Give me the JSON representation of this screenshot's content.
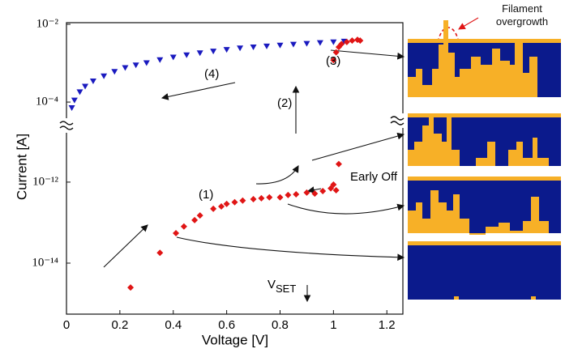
{
  "chart_data": [
    {
      "type": "scatter",
      "log_y": true,
      "xlim": [
        0,
        1.26
      ],
      "ylim": [
        2.5e-05,
        0.01
      ],
      "yticks": [
        {
          "value": 0.01,
          "label": "10⁻²"
        },
        {
          "value": 0.0001,
          "label": "10⁻⁴"
        }
      ],
      "series": [
        {
          "color": "#1a1abf",
          "marker": "triangle-down",
          "x": [
            0.02,
            0.03,
            0.05,
            0.07,
            0.1,
            0.14,
            0.18,
            0.22,
            0.26,
            0.3,
            0.35,
            0.4,
            0.45,
            0.5,
            0.55,
            0.6,
            0.65,
            0.7,
            0.75,
            0.8,
            0.85,
            0.9,
            0.95,
            1.0,
            1.04
          ],
          "values": [
            7e-05,
            0.00011,
            0.00018,
            0.00025,
            0.00034,
            0.00046,
            0.0006,
            0.00075,
            0.00088,
            0.001,
            0.0012,
            0.0014,
            0.0016,
            0.0018,
            0.002,
            0.0022,
            0.0024,
            0.00255,
            0.0027,
            0.00285,
            0.003,
            0.00315,
            0.0033,
            0.00345,
            0.0036
          ]
        },
        {
          "color": "#e01515",
          "marker": "diamond",
          "x": [
            1.0,
            1.01,
            1.02,
            1.03,
            1.05,
            1.07,
            1.09,
            1.1
          ],
          "values": [
            0.0012,
            0.0019,
            0.0026,
            0.0031,
            0.0035,
            0.0038,
            0.004,
            0.0038
          ]
        }
      ],
      "annotations": [
        {
          "text": "(4)"
        },
        {
          "text": "(3)"
        },
        {
          "text": "(2)"
        }
      ]
    },
    {
      "type": "scatter",
      "log_y": true,
      "xlim": [
        0,
        1.26
      ],
      "ylim": [
        5.5e-16,
        2.5e-11
      ],
      "xlabel": "Voltage [V]",
      "ylabel": "Current [A]",
      "xticks": [
        0,
        0.2,
        0.4,
        0.6,
        0.8,
        1,
        1.2
      ],
      "yticks": [
        {
          "value": 1e-12,
          "label": "10⁻¹²"
        },
        {
          "value": 1e-14,
          "label": "10⁻¹⁴"
        }
      ],
      "series": [
        {
          "color": "#e01515",
          "marker": "diamond",
          "x": [
            0.24,
            0.35,
            0.41,
            0.44,
            0.48,
            0.5,
            0.55,
            0.58,
            0.6,
            0.63,
            0.66,
            0.7,
            0.73,
            0.76,
            0.8,
            0.83,
            0.86,
            0.9,
            0.93,
            0.96,
            0.99,
            1.0,
            1.01,
            1.02
          ],
          "values": [
            2.5e-15,
            1.8e-14,
            5.5e-14,
            8e-14,
            1.15e-13,
            1.5e-13,
            2.2e-13,
            2.5e-13,
            2.9e-13,
            3.2e-13,
            3.5e-13,
            3.8e-13,
            4e-13,
            4.2e-13,
            4.2e-13,
            4.8e-13,
            5e-13,
            5.5e-13,
            5.2e-13,
            6e-13,
            7e-13,
            8.7e-13,
            6.3e-13,
            2.8e-12
          ]
        }
      ],
      "annotations": [
        {
          "text": "(1)"
        },
        {
          "text": "Early Off"
        },
        {
          "text": "V",
          "subscript": "SET"
        },
        {
          "text": "Filament overgrowth"
        }
      ]
    }
  ]
}
